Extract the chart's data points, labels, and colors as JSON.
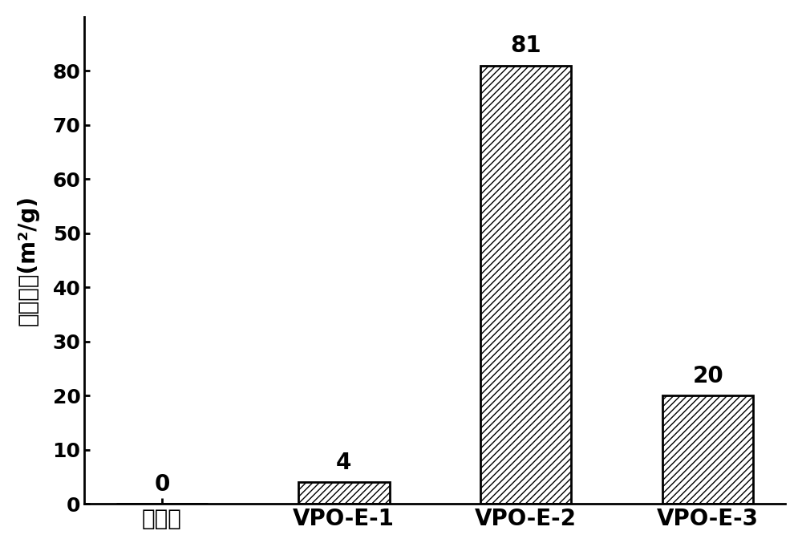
{
  "categories": [
    "对比样",
    "VPO-E-1",
    "VPO-E-2",
    "VPO-E-3"
  ],
  "values": [
    0,
    4,
    81,
    20
  ],
  "bar_facecolor": "#ffffff",
  "bar_edgecolor": "#000000",
  "hatch": "////",
  "ylabel_chinese": "比表面积",
  "ylabel_units": "(m²/g)",
  "ylim": [
    0,
    90
  ],
  "yticks": [
    0,
    10,
    20,
    30,
    40,
    50,
    60,
    70,
    80
  ],
  "bar_width": 0.5,
  "background_color": "#ffffff",
  "value_labels": [
    "0",
    "4",
    "81",
    "20"
  ],
  "value_label_offsets": [
    1.5,
    1.5,
    1.5,
    1.5
  ],
  "xlabel_fontsize": 20,
  "ylabel_fontsize": 20,
  "tick_fontsize": 18,
  "annot_fontsize": 20,
  "spine_linewidth": 2.0,
  "tick_linewidth": 2.0
}
